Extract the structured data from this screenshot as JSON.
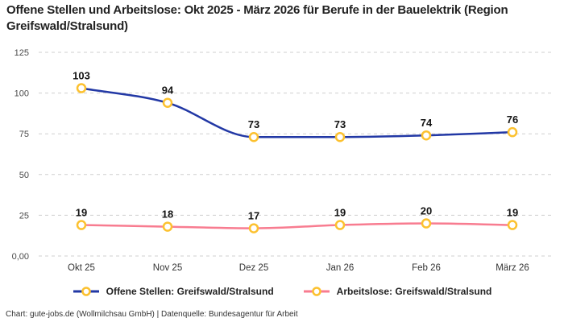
{
  "title": "Offene Stellen und Arbeitslose: Okt 2025 - März 2026 für Berufe in der Bauelektrik (Region Greifswald/Stralsund)",
  "footer": "Chart: gute-jobs.de (Wollmilchsau GmbH) | Datenquelle: Bundesagentur für Arbeit",
  "colors": {
    "gridline": "#cfcfcf",
    "tick_label": "#4a4a4a",
    "x_label": "#333333",
    "data_label": "#141414",
    "marker_fill": "#ffffff"
  },
  "chart_data": {
    "type": "line",
    "title": "Offene Stellen und Arbeitslose: Okt 2025 - März 2026 für Berufe in der Bauelektrik (Region Greifswald/Stralsund)",
    "categories": [
      "Okt 25",
      "Nov 25",
      "Dez 25",
      "Jan 26",
      "Feb 26",
      "März 26"
    ],
    "series": [
      {
        "name": "Offene Stellen: Greifswald/Stralsund",
        "values": [
          103,
          94,
          73,
          73,
          74,
          76
        ],
        "color": "#2238a5"
      },
      {
        "name": "Arbeitslose: Greifswald/Stralsund",
        "values": [
          19,
          18,
          17,
          19,
          20,
          19
        ],
        "color": "#f87c90"
      }
    ],
    "y_axis": {
      "range": [
        0,
        125
      ],
      "ticks": [
        {
          "value": 0,
          "label": "0,00"
        },
        {
          "value": 25,
          "label": "25"
        },
        {
          "value": 50,
          "label": "50"
        },
        {
          "value": 75,
          "label": "75"
        },
        {
          "value": 100,
          "label": "100"
        },
        {
          "value": 125,
          "label": "125"
        }
      ]
    },
    "grid": true,
    "grid_style": "dashed",
    "legend_position": "bottom",
    "smoothing": "monotone",
    "data_labels": true,
    "marker": {
      "shape": "circle",
      "ring_color": "#fcc12f",
      "fill": "#ffffff"
    }
  }
}
